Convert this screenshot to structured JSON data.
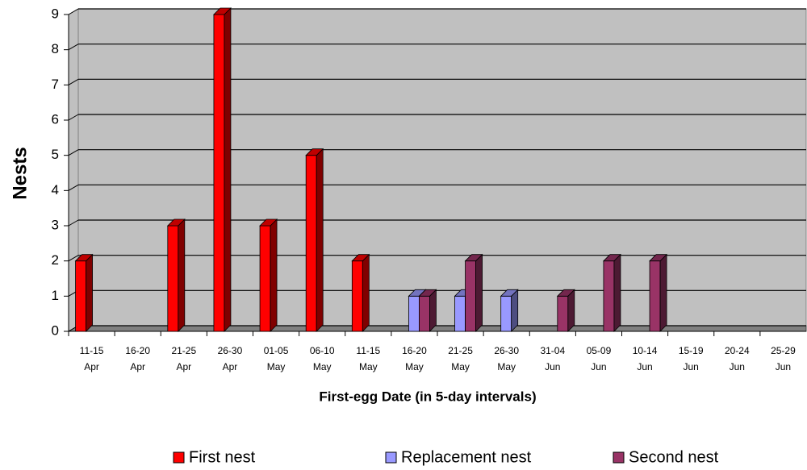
{
  "chart_data": {
    "type": "bar3d",
    "y_label": "Nests",
    "x_label": "First-egg Date (in 5-day intervals)",
    "categories": [
      [
        "11-15",
        "Apr"
      ],
      [
        "16-20",
        "Apr"
      ],
      [
        "21-25",
        "Apr"
      ],
      [
        "26-30",
        "Apr"
      ],
      [
        "01-05",
        "May"
      ],
      [
        "06-10",
        "May"
      ],
      [
        "11-15",
        "May"
      ],
      [
        "16-20",
        "May"
      ],
      [
        "21-25",
        "May"
      ],
      [
        "26-30",
        "May"
      ],
      [
        "31-04",
        "Jun"
      ],
      [
        "05-09",
        "Jun"
      ],
      [
        "10-14",
        "Jun"
      ],
      [
        "15-19",
        "Jun"
      ],
      [
        "20-24",
        "Jun"
      ],
      [
        "25-29",
        "Jun"
      ]
    ],
    "series": [
      {
        "name": "First nest",
        "color": "#ff0000",
        "values": [
          2,
          0,
          3,
          9,
          3,
          5,
          2,
          0,
          0,
          0,
          0,
          0,
          0,
          0,
          0,
          0
        ]
      },
      {
        "name": "Replacement nest",
        "color": "#9999ff",
        "values": [
          0,
          0,
          0,
          0,
          0,
          0,
          0,
          1,
          1,
          1,
          0,
          0,
          0,
          0,
          0,
          0
        ]
      },
      {
        "name": "Second nest",
        "color": "#993366",
        "values": [
          0,
          0,
          0,
          0,
          0,
          0,
          0,
          1,
          2,
          0,
          1,
          2,
          2,
          0,
          0,
          0
        ]
      }
    ],
    "ylim": [
      0,
      9
    ],
    "yticks": [
      0,
      1,
      2,
      3,
      4,
      5,
      6,
      7,
      8,
      9
    ],
    "grid": true
  }
}
